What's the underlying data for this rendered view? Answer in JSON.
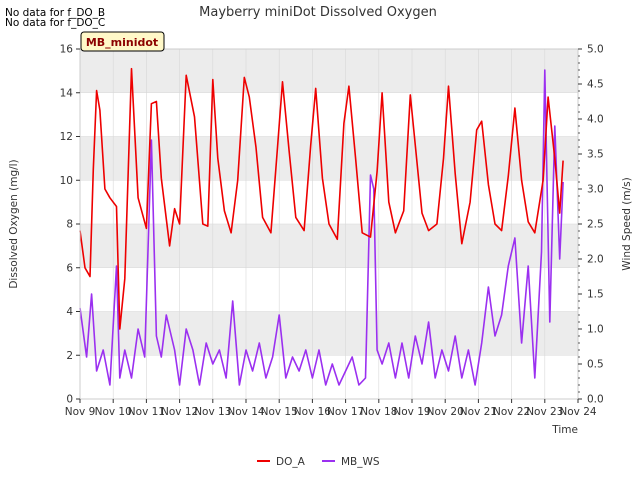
{
  "notes": [
    "No data for f_DO_B",
    "No data for f_DO_C"
  ],
  "colors": {
    "do": "#ee0000",
    "ws": "#9b30f0",
    "band": "#ececec",
    "grid": "#d8d8d8"
  },
  "chart_data": {
    "type": "line",
    "title": "Mayberry miniDot Dissolved Oxygen",
    "xlabel": "Time",
    "ylabel": "Dissolved Oxygen (mg/l)",
    "y2label": "Wind Speed (m/s)",
    "station_label": "MB_minidot",
    "x_ticks": [
      "Nov 9",
      "Nov 10",
      "Nov 11",
      "Nov 12",
      "Nov 13",
      "Nov 14",
      "Nov 15",
      "Nov 16",
      "Nov 17",
      "Nov 18",
      "Nov 19",
      "Nov 20",
      "Nov 21",
      "Nov 22",
      "Nov 23",
      "Nov 24"
    ],
    "xlim": [
      9,
      24
    ],
    "y_ticks": [
      "0",
      "2",
      "4",
      "6",
      "8",
      "10",
      "12",
      "14",
      "16"
    ],
    "ylim": [
      0,
      16
    ],
    "y2_ticks": [
      "0.0",
      "0.5",
      "1.0",
      "1.5",
      "2.0",
      "2.5",
      "3.0",
      "3.5",
      "4.0",
      "4.5",
      "5.0"
    ],
    "y2lim": [
      0,
      5
    ],
    "grid": true,
    "legend_position": "bottom-center",
    "series": [
      {
        "name": "DO_A",
        "axis": "left",
        "x": [
          9.0,
          9.15,
          9.3,
          9.4,
          9.5,
          9.6,
          9.75,
          9.9,
          10.1,
          10.2,
          10.35,
          10.55,
          10.75,
          11.0,
          11.15,
          11.3,
          11.45,
          11.7,
          11.85,
          12.0,
          12.2,
          12.45,
          12.7,
          12.85,
          13.0,
          13.15,
          13.35,
          13.55,
          13.75,
          13.95,
          14.1,
          14.3,
          14.5,
          14.75,
          14.95,
          15.1,
          15.3,
          15.5,
          15.75,
          15.95,
          16.1,
          16.3,
          16.5,
          16.75,
          16.95,
          17.1,
          17.3,
          17.5,
          17.75,
          17.95,
          18.1,
          18.3,
          18.5,
          18.75,
          18.95,
          19.1,
          19.3,
          19.5,
          19.75,
          19.95,
          20.1,
          20.3,
          20.5,
          20.75,
          20.95,
          21.1,
          21.3,
          21.5,
          21.7,
          21.9,
          22.1,
          22.3,
          22.5,
          22.7,
          22.95,
          23.1,
          23.3,
          23.45,
          23.55
        ],
        "values": [
          7.7,
          6.0,
          5.6,
          10.5,
          14.1,
          13.2,
          9.6,
          9.2,
          8.8,
          3.2,
          5.5,
          15.1,
          9.2,
          7.8,
          13.5,
          13.6,
          10.1,
          7.0,
          8.7,
          8.0,
          14.8,
          12.9,
          8.0,
          7.9,
          14.6,
          11.0,
          8.6,
          7.6,
          10.0,
          14.7,
          13.8,
          11.5,
          8.3,
          7.6,
          11.5,
          14.5,
          11.3,
          8.3,
          7.7,
          11.6,
          14.2,
          10.1,
          8.0,
          7.3,
          12.6,
          14.3,
          11.0,
          7.6,
          7.4,
          10.4,
          14.0,
          9.0,
          7.6,
          8.6,
          13.9,
          11.6,
          8.5,
          7.7,
          8.0,
          11.0,
          14.3,
          10.3,
          7.1,
          9.0,
          12.3,
          12.7,
          9.8,
          8.0,
          7.7,
          10.2,
          13.3,
          10.0,
          8.1,
          7.6,
          10.0,
          13.8,
          11.0,
          8.5,
          10.9
        ]
      },
      {
        "name": "MB_WS",
        "axis": "right",
        "x": [
          9.0,
          9.2,
          9.35,
          9.5,
          9.7,
          9.9,
          10.1,
          10.2,
          10.35,
          10.55,
          10.75,
          10.95,
          11.15,
          11.3,
          11.45,
          11.6,
          11.85,
          12.0,
          12.2,
          12.4,
          12.6,
          12.8,
          13.0,
          13.2,
          13.4,
          13.6,
          13.8,
          14.0,
          14.2,
          14.4,
          14.6,
          14.8,
          15.0,
          15.2,
          15.4,
          15.6,
          15.8,
          16.0,
          16.2,
          16.4,
          16.6,
          16.8,
          17.0,
          17.2,
          17.4,
          17.6,
          17.75,
          17.85,
          17.95,
          18.1,
          18.3,
          18.5,
          18.7,
          18.9,
          19.1,
          19.3,
          19.5,
          19.7,
          19.9,
          20.1,
          20.3,
          20.5,
          20.7,
          20.9,
          21.1,
          21.3,
          21.5,
          21.7,
          21.9,
          22.1,
          22.3,
          22.5,
          22.7,
          22.9,
          23.0,
          23.15,
          23.3,
          23.45,
          23.55
        ],
        "values": [
          1.3,
          0.6,
          1.5,
          0.4,
          0.7,
          0.2,
          1.9,
          0.3,
          0.7,
          0.3,
          1.0,
          0.6,
          3.7,
          0.9,
          0.6,
          1.2,
          0.7,
          0.2,
          1.0,
          0.7,
          0.2,
          0.8,
          0.5,
          0.7,
          0.3,
          1.4,
          0.2,
          0.7,
          0.4,
          0.8,
          0.3,
          0.6,
          1.2,
          0.3,
          0.6,
          0.4,
          0.7,
          0.3,
          0.7,
          0.2,
          0.5,
          0.2,
          0.4,
          0.6,
          0.2,
          0.3,
          3.2,
          3.0,
          0.7,
          0.5,
          0.8,
          0.3,
          0.8,
          0.3,
          0.9,
          0.5,
          1.1,
          0.3,
          0.7,
          0.4,
          0.9,
          0.3,
          0.7,
          0.2,
          0.8,
          1.6,
          0.9,
          1.2,
          1.9,
          2.3,
          0.8,
          1.9,
          0.3,
          2.1,
          4.7,
          1.1,
          3.9,
          2.0,
          3.1
        ]
      }
    ]
  }
}
